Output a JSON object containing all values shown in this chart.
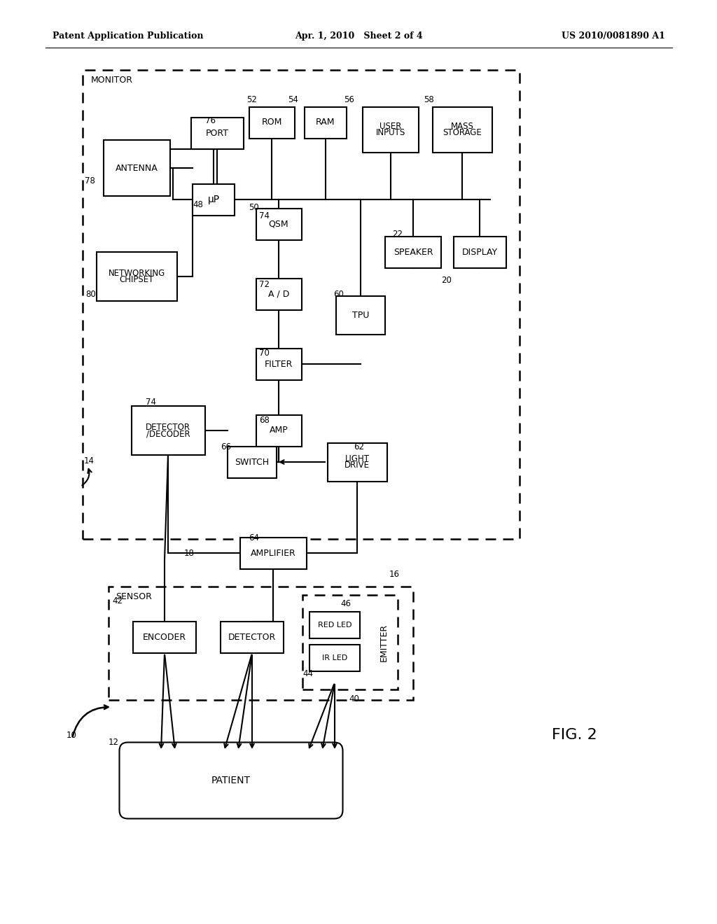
{
  "bg_color": "#ffffff",
  "line_color": "#000000",
  "header_left": "Patent Application Publication",
  "header_center": "Apr. 1, 2010   Sheet 2 of 4",
  "header_right": "US 2010/0081890 A1",
  "fig_label": "FIG. 2"
}
